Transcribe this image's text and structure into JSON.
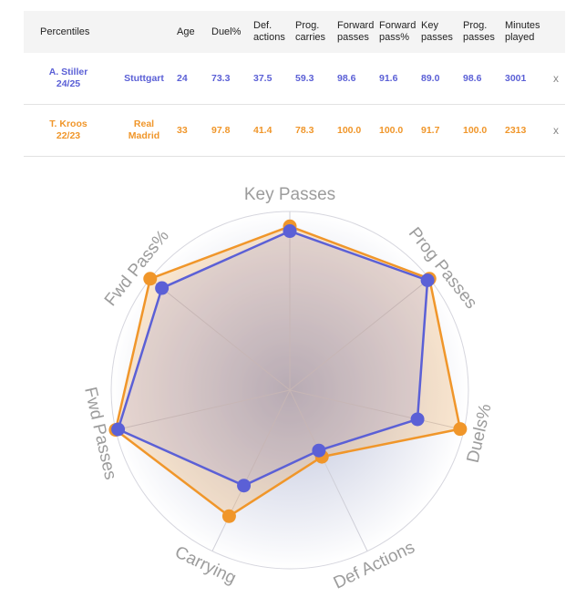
{
  "table": {
    "headers": {
      "percentiles": "Percentiles",
      "age": "Age",
      "duel": "Duel%",
      "def": [
        "Def.",
        "actions"
      ],
      "prog_carries": [
        "Prog.",
        "carries"
      ],
      "fwd_passes": [
        "Forward",
        "passes"
      ],
      "fwd_pass_pct": [
        "Forward",
        "pass%"
      ],
      "key_passes": [
        "Key",
        "passes"
      ],
      "prog_passes": [
        "Prog.",
        "passes"
      ],
      "minutes": [
        "Minutes",
        "played"
      ]
    },
    "rows": [
      {
        "player": [
          "A. Stiller",
          "24/25"
        ],
        "team": [
          "Stuttgart"
        ],
        "age": "24",
        "duel": "73.3",
        "def": "37.5",
        "prog_carries": "59.3",
        "fwd_passes": "98.6",
        "fwd_pass_pct": "91.6",
        "key_passes": "89.0",
        "prog_passes": "98.6",
        "minutes": "3001",
        "close": "x",
        "color": "#5b60d6"
      },
      {
        "player": [
          "T. Kroos",
          "22/23"
        ],
        "team": [
          "Real",
          "Madrid"
        ],
        "age": "33",
        "duel": "97.8",
        "def": "41.4",
        "prog_carries": "78.3",
        "fwd_passes": "100.0",
        "fwd_pass_pct": "100.0",
        "key_passes": "91.7",
        "prog_passes": "100.0",
        "minutes": "2313",
        "close": "x",
        "color": "#f0962a"
      }
    ]
  },
  "chart_data": {
    "type": "radar",
    "axes": [
      "Key Passes",
      "Prog Passes",
      "Duels%",
      "Def Actions",
      "Carrying",
      "Fwd Passes",
      "Fwd Pass%"
    ],
    "range": [
      0,
      100
    ],
    "series": [
      {
        "name": "T. Kroos 22/23",
        "color": "#f0962a",
        "values": [
          91.7,
          100.0,
          97.8,
          41.4,
          78.3,
          100.0,
          100.0
        ]
      },
      {
        "name": "A. Stiller 24/25",
        "color": "#5b60d6",
        "values": [
          89.0,
          98.6,
          73.3,
          37.5,
          59.3,
          98.6,
          91.6
        ]
      }
    ]
  }
}
